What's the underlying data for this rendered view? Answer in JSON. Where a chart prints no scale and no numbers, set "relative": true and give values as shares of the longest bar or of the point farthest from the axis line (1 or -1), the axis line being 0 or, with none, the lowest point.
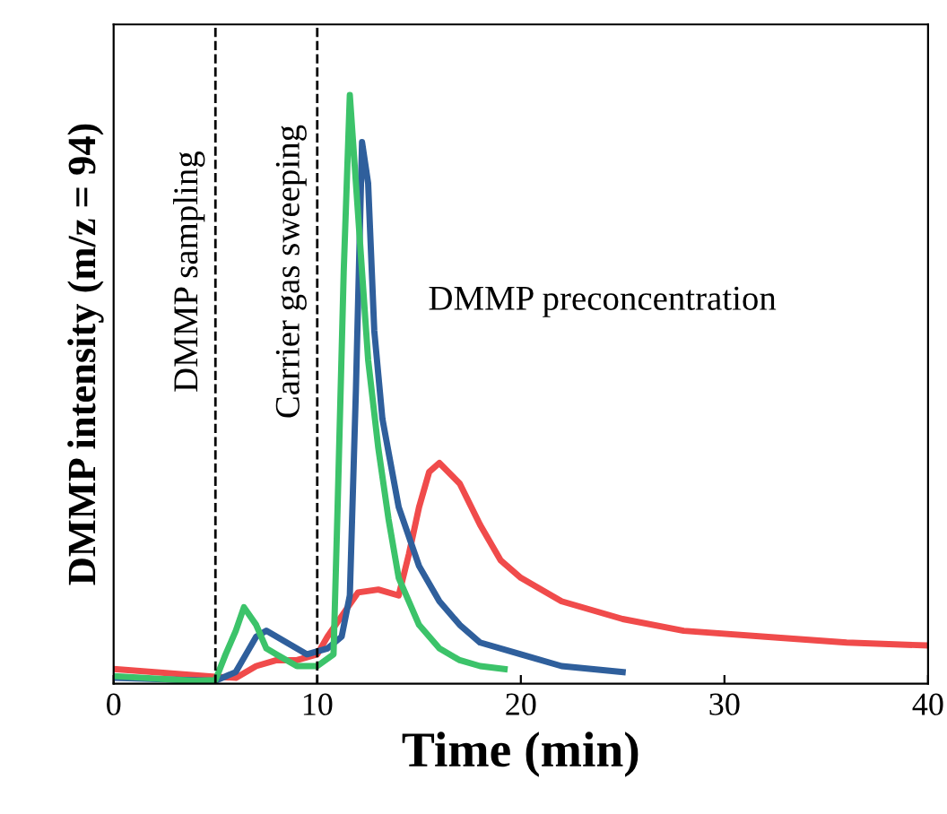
{
  "chart_data": {
    "type": "line",
    "relative": true,
    "xlabel": "Time (min)",
    "ylabel": "DMMP intensity (m/z = 94)",
    "xlim": [
      0,
      40
    ],
    "xticks": [
      0,
      10,
      20,
      30,
      40
    ],
    "grid": false,
    "legend": false,
    "marker": "none",
    "line_style": "solid",
    "series": [
      {
        "color": "#f04b4b",
        "x": [
          0,
          5,
          6,
          7,
          8,
          9,
          10,
          10.5,
          11.5,
          12,
          13,
          14,
          14.5,
          15,
          15.5,
          16,
          17,
          18,
          19,
          20,
          22,
          25,
          28,
          32,
          36,
          40
        ],
        "values": [
          0.025,
          0.012,
          0.01,
          0.03,
          0.04,
          0.04,
          0.05,
          0.08,
          0.13,
          0.155,
          0.16,
          0.15,
          0.22,
          0.3,
          0.36,
          0.375,
          0.34,
          0.27,
          0.21,
          0.18,
          0.14,
          0.11,
          0.09,
          0.08,
          0.07,
          0.065
        ]
      },
      {
        "color": "#2f5f9c",
        "x": [
          0,
          5,
          6,
          6.5,
          7,
          7.5,
          8.5,
          9.5,
          10.5,
          11.2,
          11.6,
          11.9,
          12.2,
          12.5,
          12.8,
          13.2,
          14,
          15,
          16,
          17,
          18,
          20,
          22,
          25
        ],
        "values": [
          0.01,
          0.005,
          0.02,
          0.05,
          0.08,
          0.09,
          0.07,
          0.05,
          0.06,
          0.08,
          0.15,
          0.5,
          0.92,
          0.85,
          0.6,
          0.45,
          0.3,
          0.2,
          0.14,
          0.1,
          0.07,
          0.05,
          0.03,
          0.02
        ]
      },
      {
        "color": "#3cc36a",
        "x": [
          0,
          4,
          5,
          5.5,
          6,
          6.4,
          7,
          7.5,
          8,
          9,
          10,
          10.8,
          11,
          11.3,
          11.6,
          12,
          12.5,
          13,
          13.5,
          14,
          15,
          16,
          17,
          18,
          19.2
        ],
        "values": [
          0.013,
          0.005,
          0.006,
          0.05,
          0.09,
          0.13,
          0.1,
          0.06,
          0.05,
          0.03,
          0.03,
          0.05,
          0.3,
          0.7,
          1.0,
          0.8,
          0.55,
          0.4,
          0.28,
          0.18,
          0.1,
          0.06,
          0.04,
          0.03,
          0.025
        ]
      }
    ],
    "ref_lines": [
      {
        "axis": "x",
        "value": 5,
        "label": "DMMP sampling",
        "line_style": "dashed",
        "color": "#000000"
      },
      {
        "axis": "x",
        "value": 10,
        "label": "Carrier gas sweeping",
        "line_style": "dashed",
        "color": "#000000"
      }
    ],
    "annotations": [
      "DMMP preconcentration"
    ]
  }
}
